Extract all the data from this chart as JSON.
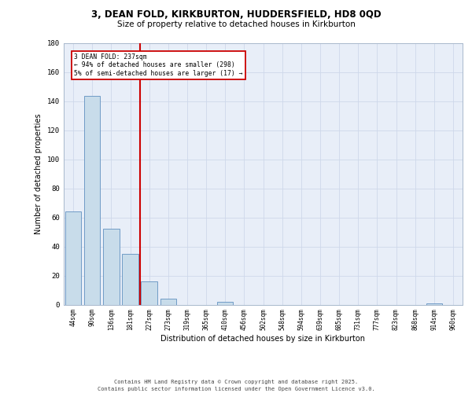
{
  "title_line1": "3, DEAN FOLD, KIRKBURTON, HUDDERSFIELD, HD8 0QD",
  "title_line2": "Size of property relative to detached houses in Kirkburton",
  "xlabel": "Distribution of detached houses by size in Kirkburton",
  "ylabel": "Number of detached properties",
  "categories": [
    "44sqm",
    "90sqm",
    "136sqm",
    "181sqm",
    "227sqm",
    "273sqm",
    "319sqm",
    "365sqm",
    "410sqm",
    "456sqm",
    "502sqm",
    "548sqm",
    "594sqm",
    "639sqm",
    "685sqm",
    "731sqm",
    "777sqm",
    "823sqm",
    "868sqm",
    "914sqm",
    "960sqm"
  ],
  "values": [
    64,
    144,
    52,
    35,
    16,
    4,
    0,
    0,
    2,
    0,
    0,
    0,
    0,
    0,
    0,
    0,
    0,
    0,
    0,
    1,
    0
  ],
  "bar_color": "#c8dcea",
  "bar_edge_color": "#6090c0",
  "vline_x": 3.5,
  "vline_color": "#cc0000",
  "annotation_text": "3 DEAN FOLD: 237sqm\n← 94% of detached houses are smaller (298)\n5% of semi-detached houses are larger (17) →",
  "annotation_box_edgecolor": "#cc0000",
  "ylim": [
    0,
    180
  ],
  "yticks": [
    0,
    20,
    40,
    60,
    80,
    100,
    120,
    140,
    160,
    180
  ],
  "grid_color": "#ced8ea",
  "plot_bg_color": "#e8eef8",
  "footer_line1": "Contains HM Land Registry data © Crown copyright and database right 2025.",
  "footer_line2": "Contains public sector information licensed under the Open Government Licence v3.0."
}
